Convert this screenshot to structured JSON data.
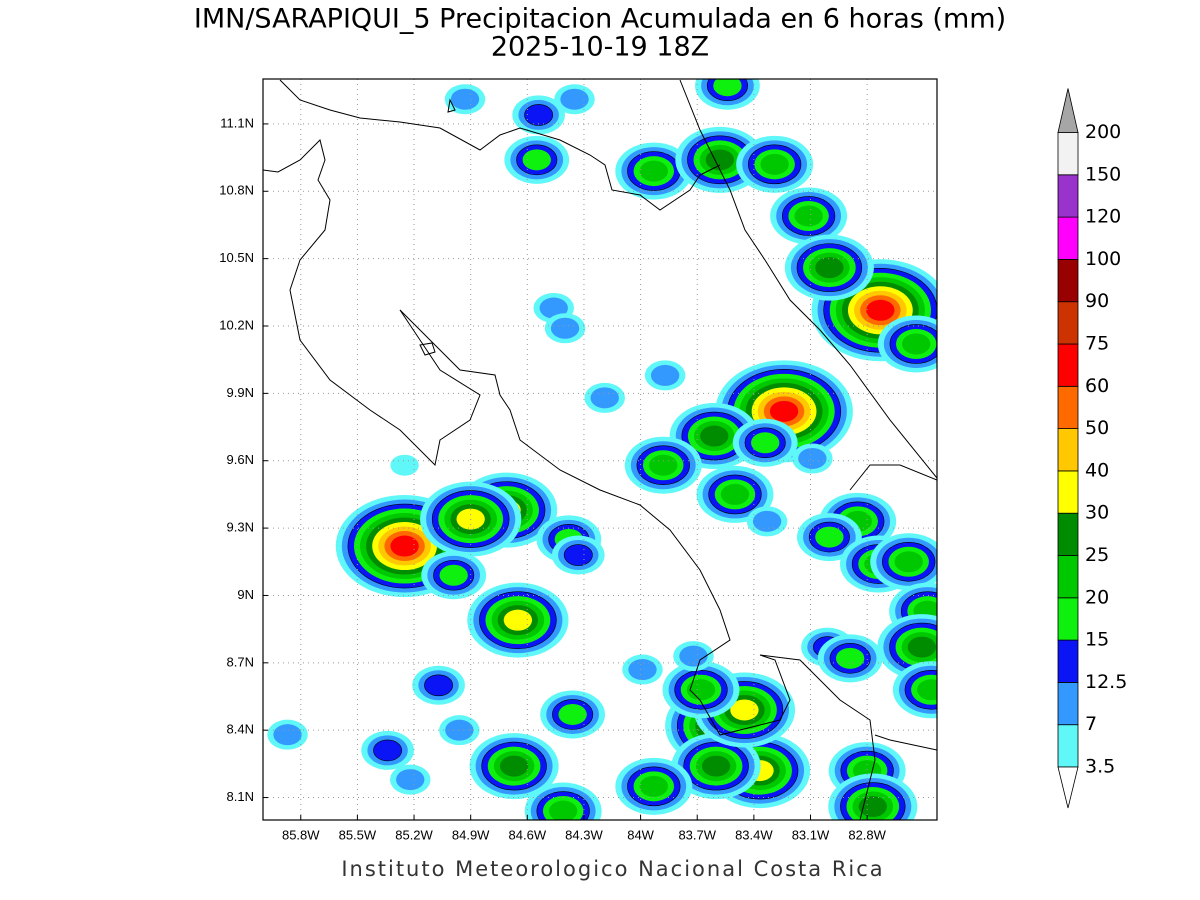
{
  "title": "IMN/SARAPIQUI_5 Precipitacion Acumulada en 6 horas (mm)",
  "subtitle": "2025-10-19 18Z",
  "footer": "Instituto Meteorologico Nacional Costa Rica",
  "map": {
    "xlim": [
      -86.0,
      -82.43
    ],
    "ylim": [
      8.0,
      11.3
    ],
    "grid": true,
    "xticks": [
      {
        "value": -85.8,
        "label": "85.8W"
      },
      {
        "value": -85.5,
        "label": "85.5W"
      },
      {
        "value": -85.2,
        "label": "85.2W"
      },
      {
        "value": -84.9,
        "label": "84.9W"
      },
      {
        "value": -84.6,
        "label": "84.6W"
      },
      {
        "value": -84.3,
        "label": "84.3W"
      },
      {
        "value": -84.0,
        "label": "84W"
      },
      {
        "value": -83.7,
        "label": "83.7W"
      },
      {
        "value": -83.4,
        "label": "83.4W"
      },
      {
        "value": -83.1,
        "label": "83.1W"
      },
      {
        "value": -82.8,
        "label": "82.8W"
      }
    ],
    "yticks": [
      {
        "value": 8.1,
        "label": "8.1N"
      },
      {
        "value": 8.4,
        "label": "8.4N"
      },
      {
        "value": 8.7,
        "label": "8.7N"
      },
      {
        "value": 9.0,
        "label": "9N"
      },
      {
        "value": 9.3,
        "label": "9.3N"
      },
      {
        "value": 9.6,
        "label": "9.6N"
      },
      {
        "value": 9.9,
        "label": "9.9N"
      },
      {
        "value": 10.2,
        "label": "10.2N"
      },
      {
        "value": 10.5,
        "label": "10.5N"
      },
      {
        "value": 10.8,
        "label": "10.8N"
      },
      {
        "value": 11.1,
        "label": "11.1N"
      }
    ],
    "cells": [
      {
        "lon": -85.25,
        "lat": 9.22,
        "value": 65
      },
      {
        "lon": -82.73,
        "lat": 10.27,
        "value": 65
      },
      {
        "lon": -83.24,
        "lat": 9.82,
        "value": 60
      },
      {
        "lon": -83.57,
        "lat": 8.42,
        "value": 45
      },
      {
        "lon": -84.71,
        "lat": 9.38,
        "value": 35
      },
      {
        "lon": -84.9,
        "lat": 9.34,
        "value": 30
      },
      {
        "lon": -84.65,
        "lat": 8.89,
        "value": 30
      },
      {
        "lon": -84.67,
        "lat": 8.24,
        "value": 25
      },
      {
        "lon": -83.37,
        "lat": 8.22,
        "value": 30
      },
      {
        "lon": -83.6,
        "lat": 8.24,
        "value": 28
      },
      {
        "lon": -83.45,
        "lat": 8.49,
        "value": 30
      },
      {
        "lon": -83.68,
        "lat": 8.58,
        "value": 22
      },
      {
        "lon": -83.93,
        "lat": 8.15,
        "value": 20
      },
      {
        "lon": -84.41,
        "lat": 8.04,
        "value": 22
      },
      {
        "lon": -84.55,
        "lat": 10.94,
        "value": 18
      },
      {
        "lon": -83.93,
        "lat": 10.89,
        "value": 20
      },
      {
        "lon": -83.58,
        "lat": 10.94,
        "value": 25
      },
      {
        "lon": -83.29,
        "lat": 10.92,
        "value": 20
      },
      {
        "lon": -83.11,
        "lat": 10.69,
        "value": 22
      },
      {
        "lon": -84.54,
        "lat": 11.14,
        "value": 13
      },
      {
        "lon": -84.35,
        "lat": 11.21,
        "value": 8
      },
      {
        "lon": -84.93,
        "lat": 11.21,
        "value": 7
      },
      {
        "lon": -83.54,
        "lat": 11.27,
        "value": 15
      },
      {
        "lon": -83.0,
        "lat": 10.46,
        "value": 25
      },
      {
        "lon": -82.54,
        "lat": 10.12,
        "value": 22
      },
      {
        "lon": -83.61,
        "lat": 9.71,
        "value": 25
      },
      {
        "lon": -83.34,
        "lat": 9.68,
        "value": 15
      },
      {
        "lon": -83.5,
        "lat": 9.45,
        "value": 20
      },
      {
        "lon": -83.88,
        "lat": 9.58,
        "value": 20
      },
      {
        "lon": -83.87,
        "lat": 9.98,
        "value": 7
      },
      {
        "lon": -84.46,
        "lat": 10.28,
        "value": 7
      },
      {
        "lon": -84.4,
        "lat": 10.19,
        "value": 7
      },
      {
        "lon": -84.99,
        "lat": 9.09,
        "value": 15
      },
      {
        "lon": -84.38,
        "lat": 9.25,
        "value": 15
      },
      {
        "lon": -84.33,
        "lat": 9.18,
        "value": 14
      },
      {
        "lon": -82.85,
        "lat": 9.33,
        "value": 20
      },
      {
        "lon": -83.0,
        "lat": 9.26,
        "value": 15
      },
      {
        "lon": -82.74,
        "lat": 9.14,
        "value": 20
      },
      {
        "lon": -82.58,
        "lat": 9.15,
        "value": 20
      },
      {
        "lon": -82.48,
        "lat": 8.93,
        "value": 22
      },
      {
        "lon": -82.51,
        "lat": 8.77,
        "value": 28
      },
      {
        "lon": -82.46,
        "lat": 8.58,
        "value": 20
      },
      {
        "lon": -83.01,
        "lat": 8.77,
        "value": 14
      },
      {
        "lon": -82.89,
        "lat": 8.72,
        "value": 15
      },
      {
        "lon": -82.8,
        "lat": 8.22,
        "value": 20
      },
      {
        "lon": -82.77,
        "lat": 8.06,
        "value": 25
      },
      {
        "lon": -85.34,
        "lat": 8.31,
        "value": 14
      },
      {
        "lon": -85.22,
        "lat": 8.18,
        "value": 10
      },
      {
        "lon": -85.07,
        "lat": 8.6,
        "value": 13
      },
      {
        "lon": -84.36,
        "lat": 8.47,
        "value": 15
      },
      {
        "lon": -85.87,
        "lat": 8.38,
        "value": 7
      },
      {
        "lon": -85.25,
        "lat": 9.58,
        "value": 5
      },
      {
        "lon": -84.96,
        "lat": 8.4,
        "value": 7
      },
      {
        "lon": -83.99,
        "lat": 8.67,
        "value": 10
      },
      {
        "lon": -84.19,
        "lat": 9.88,
        "value": 10
      },
      {
        "lon": -83.33,
        "lat": 9.33,
        "value": 7
      },
      {
        "lon": -83.09,
        "lat": 9.61,
        "value": 10
      },
      {
        "lon": -83.72,
        "lat": 8.73,
        "value": 7
      }
    ]
  },
  "colorbar": {
    "levels": [
      3.5,
      7,
      12.5,
      15,
      20,
      25,
      30,
      40,
      50,
      60,
      75,
      90,
      100,
      120,
      150,
      200
    ],
    "colors": [
      "#5ff7f7",
      "#3399ff",
      "#0a14f5",
      "#0ef00e",
      "#00c800",
      "#008c00",
      "#ffff00",
      "#ffc800",
      "#ff6a00",
      "#ff0000",
      "#cc3300",
      "#990000",
      "#ff00ff",
      "#9933cc",
      "#f2f2f2"
    ],
    "under_color": "#ffffff",
    "over_color": "#a6a6a6"
  }
}
